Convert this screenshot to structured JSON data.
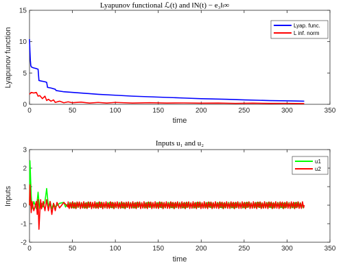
{
  "chart_data": [
    {
      "type": "line",
      "title": "Lyapunov functional ℒ(t) and ‖N(t) − e₃‖ₗ∞",
      "xlabel": "time",
      "ylabel": "Lyapunov function",
      "xlim": [
        0,
        350
      ],
      "ylim": [
        0,
        15
      ],
      "x_ticks": [
        "0",
        "50",
        "100",
        "150",
        "200",
        "250",
        "300",
        "350"
      ],
      "y_ticks": [
        "0",
        "5",
        "10",
        "15"
      ],
      "grid": false,
      "legend_position": "top-right",
      "series": [
        {
          "name": "Lyap. func.",
          "color": "#0000ff",
          "x": [
            0,
            0.5,
            1,
            1.5,
            2,
            3,
            5,
            8,
            10,
            11,
            14,
            18,
            20,
            21,
            25,
            30,
            31,
            40,
            60,
            80,
            100,
            120,
            150,
            180,
            200,
            230,
            250,
            280,
            300,
            320
          ],
          "y": [
            10.4,
            8.5,
            7.0,
            6.2,
            6.0,
            5.9,
            5.8,
            5.7,
            5.6,
            3.8,
            3.7,
            3.6,
            3.5,
            2.7,
            2.6,
            2.4,
            2.2,
            2.0,
            1.8,
            1.6,
            1.45,
            1.3,
            1.15,
            1.0,
            0.9,
            0.8,
            0.7,
            0.6,
            0.55,
            0.5
          ]
        },
        {
          "name": "L inf. norm",
          "color": "#ff0000",
          "x": [
            0,
            2,
            5,
            8,
            10,
            12,
            15,
            18,
            20,
            22,
            25,
            28,
            30,
            35,
            40,
            45,
            50,
            60,
            70,
            80,
            90,
            100,
            120,
            140,
            160,
            180,
            200,
            220,
            240,
            260,
            280,
            300,
            320
          ],
          "y": [
            1.6,
            1.9,
            1.8,
            1.9,
            1.3,
            1.4,
            0.9,
            1.3,
            0.6,
            0.8,
            0.5,
            0.7,
            0.3,
            0.5,
            0.25,
            0.4,
            0.25,
            0.35,
            0.2,
            0.3,
            0.2,
            0.3,
            0.2,
            0.25,
            0.2,
            0.22,
            0.18,
            0.2,
            0.15,
            0.18,
            0.14,
            0.15,
            0.12
          ]
        }
      ]
    },
    {
      "type": "line",
      "title": "Inputs u₁ and u₂",
      "xlabel": "time",
      "ylabel": "Inputs",
      "xlim": [
        0,
        350
      ],
      "ylim": [
        -2,
        3
      ],
      "x_ticks": [
        "0",
        "50",
        "100",
        "150",
        "200",
        "250",
        "300",
        "350"
      ],
      "y_ticks": [
        "-2",
        "-1",
        "0",
        "1",
        "2",
        "3"
      ],
      "grid": false,
      "legend_position": "top-right",
      "series": [
        {
          "name": "u1",
          "color": "#00ff00",
          "x": [
            0,
            0.5,
            1,
            2,
            3,
            5,
            8,
            10,
            11,
            12,
            14,
            16,
            18,
            20,
            21,
            22,
            24,
            26,
            28,
            30,
            35,
            40,
            42,
            45,
            50,
            320
          ],
          "y": [
            0,
            2.4,
            1.8,
            0.5,
            -0.2,
            0.2,
            -0.2,
            0.7,
            0.2,
            -0.2,
            0.1,
            -0.1,
            0.2,
            0.9,
            0.4,
            -0.1,
            0.2,
            -0.2,
            0.1,
            -0.1,
            0.1,
            0.15,
            -0.1,
            0.1,
            0.0,
            0.0
          ],
          "oscillation": {
            "from": 45,
            "to": 320,
            "amplitude": 0.12,
            "period": 2.2
          }
        },
        {
          "name": "u2",
          "color": "#ff0000",
          "x": [
            0,
            0.5,
            1,
            2,
            3,
            5,
            8,
            9,
            10,
            11,
            12,
            13,
            14,
            16,
            18,
            20,
            22,
            24,
            26,
            28,
            30,
            32,
            35,
            40,
            45,
            320
          ],
          "y": [
            0,
            1.1,
            0.6,
            -0.4,
            0.2,
            -0.3,
            0.2,
            -0.5,
            0.3,
            -1.3,
            -0.4,
            0.3,
            -0.2,
            0.2,
            -0.3,
            0.3,
            -0.3,
            0.2,
            -0.5,
            0.1,
            -0.3,
            0.15,
            -0.15,
            0.15,
            -0.1,
            0.0
          ],
          "oscillation": {
            "from": 45,
            "to": 320,
            "amplitude": 0.15,
            "period": 2.6
          }
        }
      ]
    }
  ]
}
